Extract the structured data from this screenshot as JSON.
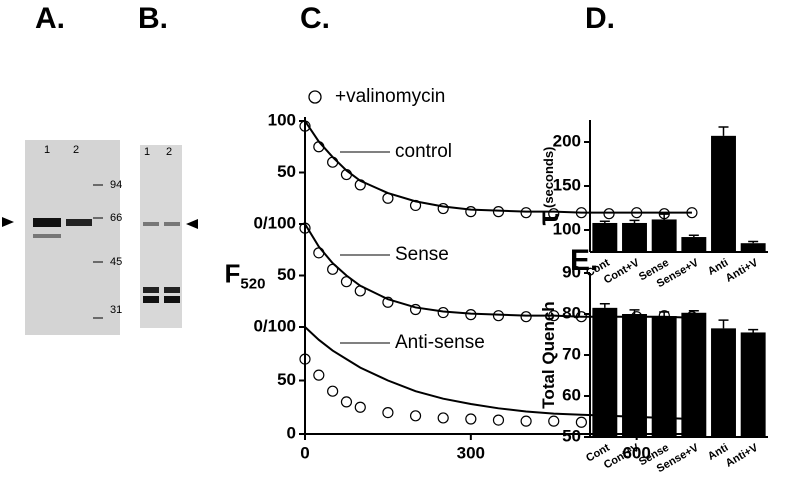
{
  "panel_labels": [
    "A.",
    "B.",
    "C.",
    "D.",
    "E."
  ],
  "gels": {
    "lanes_a": [
      "1",
      "2"
    ],
    "lanes_b": [
      "1",
      "2"
    ],
    "markers": [
      94,
      66,
      45,
      31
    ]
  },
  "chart_data": [
    {
      "type": "line",
      "x": [
        0,
        25,
        50,
        75,
        100,
        150,
        200,
        250,
        300,
        350,
        400,
        450,
        500,
        550,
        600,
        650,
        700
      ],
      "xlim": [
        0,
        720
      ],
      "ylim": [
        0,
        100
      ],
      "yticks": [
        {
          "value": 0,
          "label": "0/100"
        },
        50,
        100
      ],
      "series": [
        {
          "name": "control",
          "color": "#000000",
          "values": [
            100,
            80,
            65,
            52,
            42,
            30,
            22,
            17,
            14,
            13,
            12,
            12,
            11,
            11,
            11,
            11,
            11
          ]
        },
        {
          "name": "+valinomycin",
          "marker": "circle",
          "color": "#000000",
          "values": [
            95,
            75,
            60,
            48,
            38,
            25,
            18,
            15,
            12,
            12,
            11,
            10,
            11,
            10,
            11,
            10,
            11
          ]
        }
      ]
    },
    {
      "type": "line",
      "ylabel": "F",
      "ylabel_sub": "520",
      "x": [
        0,
        25,
        50,
        75,
        100,
        150,
        200,
        250,
        300,
        350,
        400,
        450,
        500,
        550,
        600,
        650,
        700
      ],
      "xlim": [
        0,
        720
      ],
      "ylim": [
        0,
        100
      ],
      "yticks": [
        {
          "value": 0,
          "label": "0/100"
        },
        50
      ],
      "series": [
        {
          "name": "Sense",
          "color": "#000000",
          "values": [
            100,
            78,
            62,
            50,
            40,
            27,
            19,
            15,
            13,
            12,
            11,
            11,
            10,
            10,
            10,
            10,
            9
          ]
        },
        {
          "marker": "circle",
          "color": "#000000",
          "values": [
            96,
            72,
            56,
            44,
            35,
            24,
            17,
            14,
            12,
            11,
            10,
            11,
            10,
            11,
            10,
            11,
            10
          ]
        }
      ]
    },
    {
      "type": "line",
      "x": [
        0,
        25,
        50,
        75,
        100,
        150,
        200,
        250,
        300,
        350,
        400,
        450,
        500,
        550,
        600,
        650,
        700
      ],
      "xlim": [
        0,
        720
      ],
      "ylim": [
        0,
        100
      ],
      "yticks": [
        0,
        50
      ],
      "xticks": [
        0,
        300,
        600
      ],
      "series": [
        {
          "name": "Anti-sense",
          "color": "#000000",
          "values": [
            100,
            88,
            78,
            70,
            62,
            50,
            40,
            33,
            28,
            24,
            21,
            19,
            18,
            17,
            16,
            15,
            14
          ]
        },
        {
          "marker": "circle",
          "color": "#000000",
          "values": [
            70,
            55,
            40,
            30,
            25,
            20,
            17,
            15,
            14,
            13,
            12,
            12,
            11,
            11,
            11,
            11,
            11
          ]
        }
      ]
    },
    {
      "type": "bar",
      "ylabel": "τ",
      "ylabel_unit": "(seconds)",
      "categories": [
        "Cont",
        "Cont+V",
        "Sense",
        "Sense+V",
        "Anti",
        "Anti+V"
      ],
      "values": [
        108,
        108,
        112,
        92,
        207,
        85
      ],
      "errors": [
        2,
        3,
        6,
        2,
        10,
        2
      ],
      "color": "#000000",
      "ylim": [
        75,
        225
      ],
      "yticks": [
        100,
        150,
        200
      ]
    },
    {
      "type": "bar",
      "ylabel": "Total Quench",
      "categories": [
        "Cont",
        "Cont+V",
        "Sense",
        "Sense+V",
        "Anti",
        "Anti+V"
      ],
      "values": [
        81.5,
        80,
        79.5,
        80.3,
        76.5,
        75.5
      ],
      "errors": [
        1,
        1,
        1,
        0.5,
        2,
        0.7
      ],
      "color": "#000000",
      "ylim": [
        50,
        90
      ],
      "yticks": [
        50,
        60,
        70,
        80,
        90
      ]
    }
  ]
}
